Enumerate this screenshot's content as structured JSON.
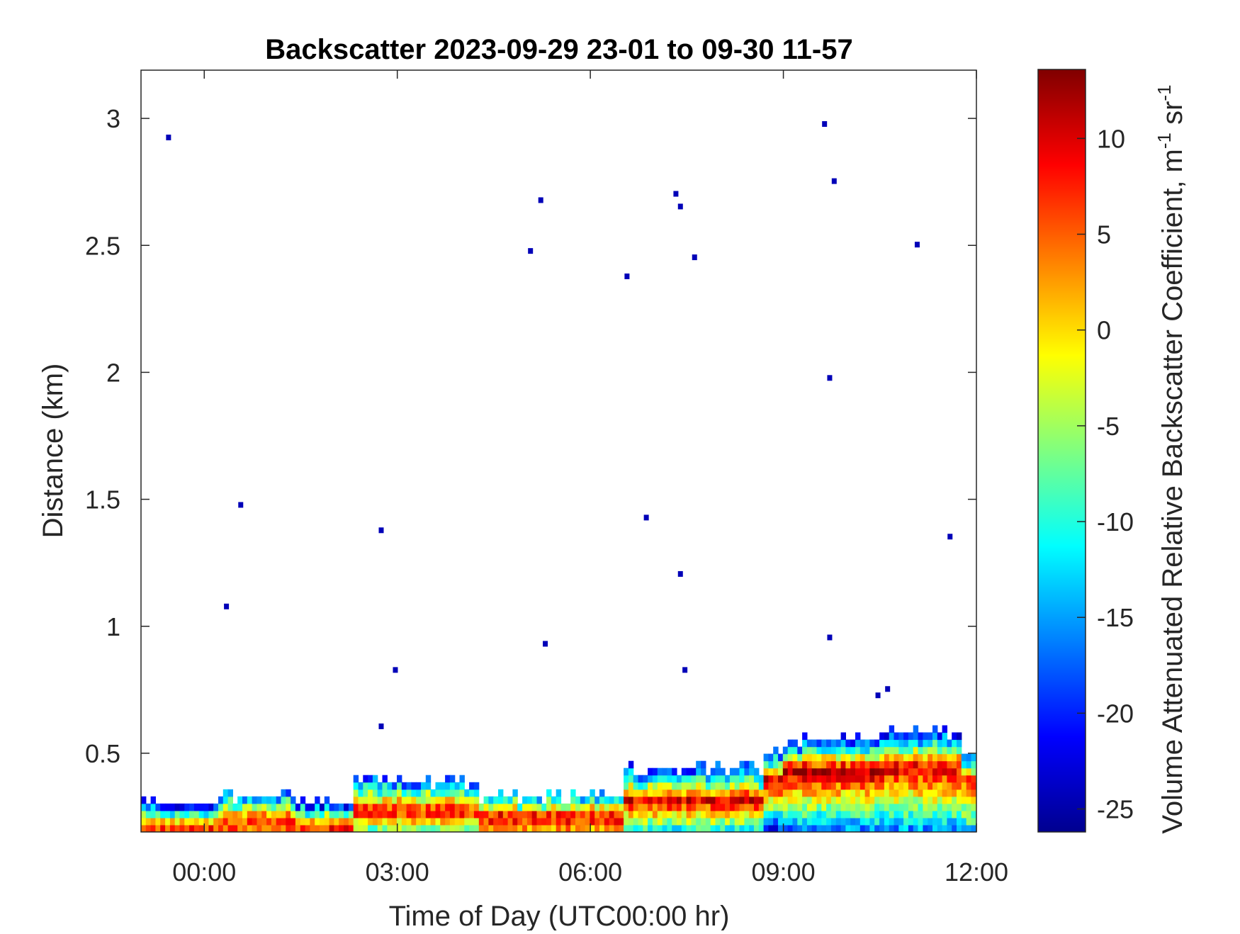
{
  "chart_data": {
    "type": "heatmap",
    "title": "Backscatter 2023-09-29 23-01 to 09-30 11-57",
    "xlabel": "Time of Day (UTC00:00 hr)",
    "ylabel": "Distance (km)",
    "colorbar_label": "Volume Attenuated Relative Backscatter Coefficient, m",
    "colorbar_label_units": [
      "-1",
      " sr",
      "-1"
    ],
    "colormap": "jet",
    "xlim_hours": [
      -0.983,
      12
    ],
    "ylim_km": [
      0.19,
      3.19
    ],
    "clim": [
      -26.2,
      13.6
    ],
    "x_ticks": [
      {
        "value": 0,
        "label": "00:00"
      },
      {
        "value": 3,
        "label": "03:00"
      },
      {
        "value": 6,
        "label": "06:00"
      },
      {
        "value": 9,
        "label": "09:00"
      },
      {
        "value": 12,
        "label": "12:00"
      }
    ],
    "y_ticks": [
      {
        "value": 0.5,
        "label": "0.5"
      },
      {
        "value": 1,
        "label": "1"
      },
      {
        "value": 1.5,
        "label": "1.5"
      },
      {
        "value": 2,
        "label": "2"
      },
      {
        "value": 2.5,
        "label": "2.5"
      },
      {
        "value": 3,
        "label": "3"
      }
    ],
    "colorbar_ticks": [
      {
        "value": 10,
        "label": "10"
      },
      {
        "value": 5,
        "label": "5"
      },
      {
        "value": 0,
        "label": "0"
      },
      {
        "value": -5,
        "label": "-5"
      },
      {
        "value": -10,
        "label": "-10"
      },
      {
        "value": -15,
        "label": "-15"
      },
      {
        "value": -20,
        "label": "-20"
      },
      {
        "value": -25,
        "label": "-25"
      }
    ],
    "time_step_hours": 0.075,
    "range_step_km": 0.028,
    "boundary_layer_segments": [
      {
        "t_start": -0.983,
        "t_end": 0.25,
        "top_km": 0.28,
        "core_km": 0.2,
        "core_value": 6,
        "bottom_value": 6
      },
      {
        "t_start": 0.25,
        "t_end": 1.4,
        "top_km": 0.33,
        "core_km": 0.23,
        "core_value": 6,
        "bottom_value": 5
      },
      {
        "t_start": 1.4,
        "t_end": 2.3,
        "top_km": 0.28,
        "core_km": 0.2,
        "core_value": 7,
        "bottom_value": 7
      },
      {
        "t_start": 2.3,
        "t_end": 4.3,
        "top_km": 0.38,
        "core_km": 0.26,
        "core_value": 9,
        "bottom_value": -6
      },
      {
        "t_start": 4.3,
        "t_end": 6.5,
        "top_km": 0.33,
        "core_km": 0.24,
        "core_value": 9,
        "bottom_value": 3
      },
      {
        "t_start": 6.5,
        "t_end": 8.7,
        "top_km": 0.43,
        "core_km": 0.3,
        "core_value": 10,
        "bottom_value": -10
      },
      {
        "t_start": 8.7,
        "t_end": 9.0,
        "top_km": 0.48,
        "core_km": 0.38,
        "core_value": 11,
        "bottom_value": -20
      },
      {
        "t_start": 9.0,
        "t_end": 10.6,
        "top_km": 0.54,
        "core_km": 0.42,
        "core_value": 12,
        "bottom_value": -16
      },
      {
        "t_start": 10.6,
        "t_end": 11.8,
        "top_km": 0.56,
        "core_km": 0.43,
        "core_value": 10,
        "bottom_value": -15
      },
      {
        "t_start": 11.8,
        "t_end": 12.0,
        "top_km": 0.49,
        "core_km": 0.38,
        "core_value": 6,
        "bottom_value": -12
      }
    ],
    "isolated_returns": [
      [
        -0.555,
        2.925
      ],
      [
        0.567,
        1.478
      ],
      [
        0.345,
        1.078
      ],
      [
        2.75,
        1.378
      ],
      [
        2.97,
        0.828
      ],
      [
        2.75,
        0.606
      ],
      [
        5.07,
        2.478
      ],
      [
        5.23,
        2.678
      ],
      [
        5.3,
        0.931
      ],
      [
        6.57,
        2.378
      ],
      [
        6.87,
        1.428
      ],
      [
        7.33,
        2.703
      ],
      [
        7.4,
        2.653
      ],
      [
        7.62,
        2.453
      ],
      [
        7.4,
        1.206
      ],
      [
        7.47,
        0.828
      ],
      [
        9.64,
        2.978
      ],
      [
        9.79,
        2.753
      ],
      [
        9.72,
        1.978
      ],
      [
        9.72,
        0.956
      ],
      [
        10.47,
        0.728
      ],
      [
        10.62,
        0.753
      ],
      [
        11.08,
        2.503
      ],
      [
        11.59,
        1.353
      ]
    ],
    "isolated_return_value": -24
  }
}
